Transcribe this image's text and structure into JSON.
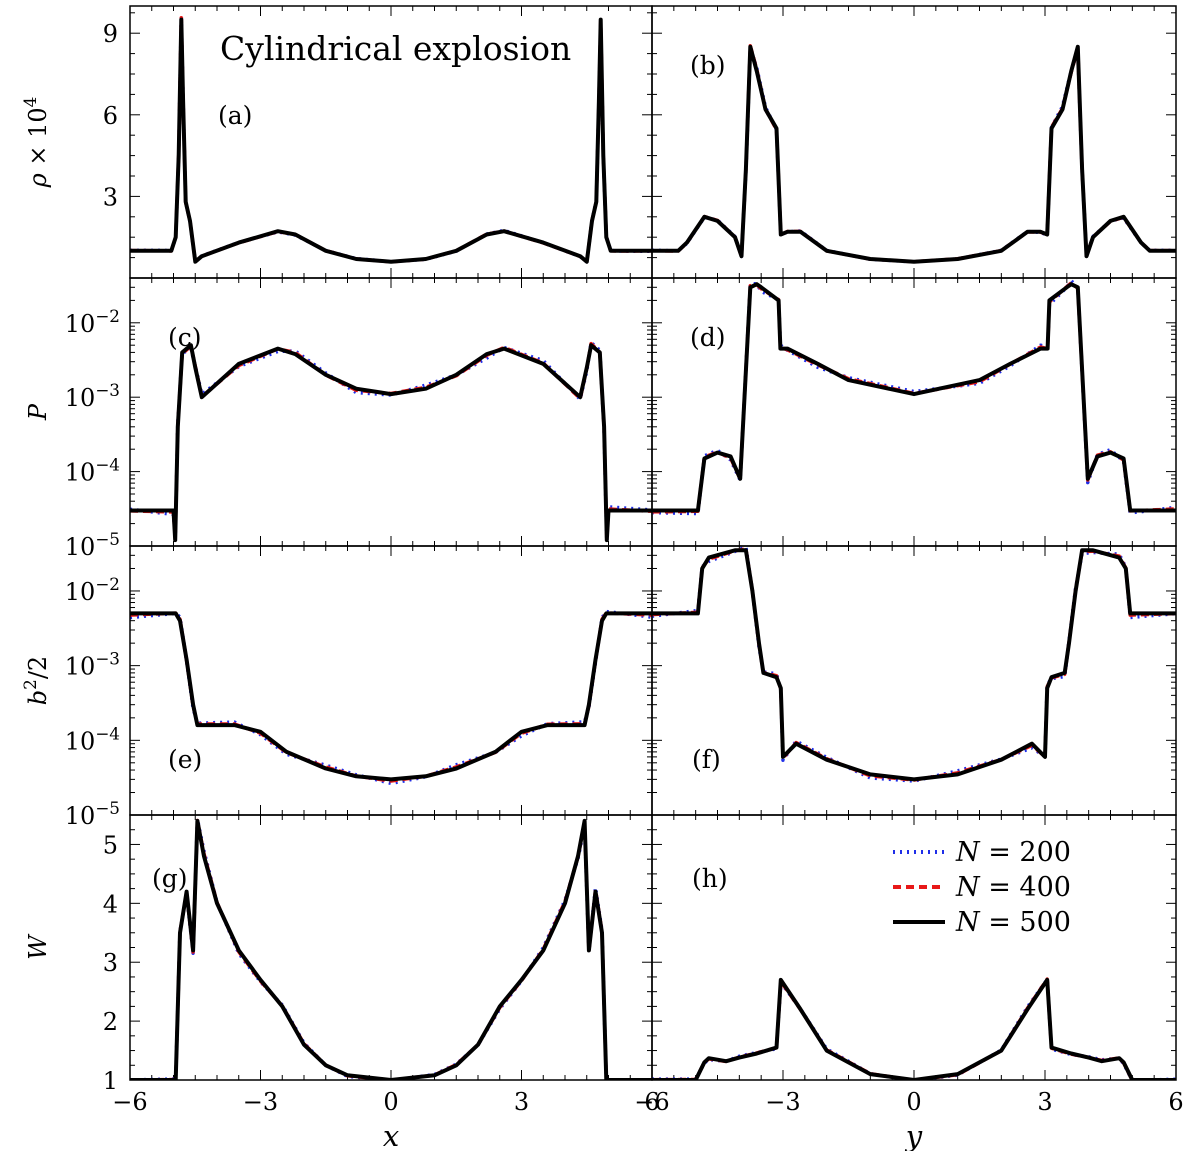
{
  "figure": {
    "title": "Cylindrical explosion",
    "xlabels": [
      "x",
      "y"
    ],
    "colors": {
      "N200": "#1f2ee8",
      "N400": "#e81818",
      "N500": "#000000",
      "axes": "#000000"
    }
  },
  "legend": {
    "placement": "upper-right of panel (h)",
    "entries": [
      {
        "label": "N = 200",
        "style": "dotted",
        "color": "#1f2ee8"
      },
      {
        "label": "N = 400",
        "style": "dashed",
        "color": "#e81818"
      },
      {
        "label": "N = 500",
        "style": "solid",
        "color": "#000000"
      }
    ]
  },
  "chart_data": [
    {
      "type": "line",
      "panel": "(a)",
      "xlabel": "",
      "ylabel": "ρ × 10⁴",
      "xlim": [
        -6,
        6
      ],
      "ylim": [
        0,
        10
      ],
      "yscale": "linear",
      "xticks": [
        -6,
        -3,
        0,
        3,
        6
      ],
      "yticks": [
        3,
        6,
        9
      ],
      "x": [
        -6,
        -5.2,
        -5.05,
        -4.95,
        -4.88,
        -4.82,
        -4.78,
        -4.72,
        -4.62,
        -4.5,
        -4.35,
        -3.5,
        -2.6,
        -2.2,
        -1.5,
        -0.8,
        0,
        0.8,
        1.5,
        2.2,
        2.6,
        3.5,
        4.35,
        4.5,
        4.62,
        4.72,
        4.78,
        4.82,
        4.88,
        4.95,
        5.05,
        5.2,
        6
      ],
      "series": [
        {
          "name": "N = 500",
          "values": [
            1.0,
            1.0,
            1.0,
            1.5,
            4.5,
            9.5,
            6.5,
            2.8,
            2.1,
            0.6,
            0.8,
            1.3,
            1.72,
            1.6,
            1.0,
            0.7,
            0.6,
            0.7,
            1.0,
            1.6,
            1.72,
            1.3,
            0.8,
            0.6,
            2.1,
            2.8,
            6.5,
            9.5,
            4.5,
            1.5,
            1.0,
            1.0,
            1.0
          ]
        }
      ]
    },
    {
      "type": "line",
      "panel": "(b)",
      "xlabel": "",
      "ylabel": "",
      "xlim": [
        -6,
        6
      ],
      "ylim": [
        0,
        10
      ],
      "yscale": "linear",
      "xticks": [
        -6,
        -3,
        0,
        3,
        6
      ],
      "yticks": [
        3,
        6,
        9
      ],
      "x": [
        -6,
        -5.4,
        -5.2,
        -4.8,
        -4.5,
        -4.1,
        -3.95,
        -3.85,
        -3.75,
        -3.6,
        -3.4,
        -3.15,
        -3.05,
        -2.9,
        -2.6,
        -2.0,
        -1.0,
        0,
        1.0,
        2.0,
        2.6,
        2.9,
        3.05,
        3.15,
        3.4,
        3.6,
        3.75,
        3.85,
        3.95,
        4.1,
        4.5,
        4.8,
        5.2,
        5.4,
        6
      ],
      "series": [
        {
          "name": "N = 500",
          "values": [
            1.0,
            1.0,
            1.3,
            2.25,
            2.1,
            1.5,
            0.8,
            4.0,
            8.5,
            7.6,
            6.2,
            5.5,
            1.6,
            1.7,
            1.7,
            1.0,
            0.7,
            0.6,
            0.7,
            1.0,
            1.7,
            1.7,
            1.6,
            5.5,
            6.2,
            7.6,
            8.5,
            4.0,
            0.8,
            1.5,
            2.1,
            2.25,
            1.3,
            1.0,
            1.0
          ]
        }
      ]
    },
    {
      "type": "line",
      "panel": "(c)",
      "xlabel": "",
      "ylabel": "P",
      "xlim": [
        -6,
        6
      ],
      "ylim": [
        1e-05,
        0.04
      ],
      "yscale": "log",
      "xticks": [
        -6,
        -3,
        0,
        3,
        6
      ],
      "ytick_labels": [
        "10⁻²",
        "10⁻³",
        "10⁻⁴",
        "10⁻⁵"
      ],
      "x": [
        -6,
        -5.0,
        -4.96,
        -4.9,
        -4.8,
        -4.6,
        -4.5,
        -4.35,
        -3.5,
        -2.6,
        -2.2,
        -1.5,
        -0.8,
        0,
        0.8,
        1.5,
        2.2,
        2.6,
        3.5,
        4.35,
        4.5,
        4.6,
        4.8,
        4.9,
        4.96,
        5.0,
        6
      ],
      "series": [
        {
          "name": "N = 500",
          "values": [
            3e-05,
            3e-05,
            1.2e-05,
            0.0004,
            0.004,
            0.005,
            0.0025,
            0.001,
            0.0028,
            0.0045,
            0.0038,
            0.002,
            0.0013,
            0.0011,
            0.0013,
            0.002,
            0.0038,
            0.0045,
            0.0028,
            0.001,
            0.0025,
            0.005,
            0.004,
            0.0004,
            1.2e-05,
            3e-05,
            3e-05
          ]
        }
      ]
    },
    {
      "type": "line",
      "panel": "(d)",
      "xlabel": "",
      "ylabel": "",
      "xlim": [
        -6,
        6
      ],
      "ylim": [
        1e-05,
        0.04
      ],
      "yscale": "log",
      "xticks": [
        -6,
        -3,
        0,
        3,
        6
      ],
      "ytick_labels": [
        "10⁻²",
        "10⁻³",
        "10⁻⁴",
        "10⁻⁵"
      ],
      "x": [
        -6,
        -4.95,
        -4.8,
        -4.5,
        -4.2,
        -3.98,
        -3.75,
        -3.6,
        -3.5,
        -3.1,
        -3.06,
        -2.9,
        -2.2,
        -1.5,
        0,
        1.5,
        2.2,
        2.9,
        3.06,
        3.1,
        3.5,
        3.6,
        3.75,
        3.98,
        4.2,
        4.5,
        4.8,
        4.95,
        6
      ],
      "series": [
        {
          "name": "N = 500",
          "values": [
            3e-05,
            3e-05,
            0.00015,
            0.00018,
            0.00016,
            8e-05,
            0.03,
            0.033,
            0.03,
            0.02,
            0.0045,
            0.0045,
            0.0028,
            0.0017,
            0.0011,
            0.0017,
            0.0028,
            0.0045,
            0.0045,
            0.02,
            0.03,
            0.033,
            0.03,
            8e-05,
            0.00016,
            0.00018,
            0.00015,
            3e-05,
            3e-05
          ]
        }
      ]
    },
    {
      "type": "line",
      "panel": "(e)",
      "xlabel": "",
      "ylabel": "b²/2",
      "xlim": [
        -6,
        6
      ],
      "ylim": [
        1e-05,
        0.04
      ],
      "yscale": "log",
      "xticks": [
        -6,
        -3,
        0,
        3,
        6
      ],
      "ytick_labels": [
        "10⁻²",
        "10⁻³",
        "10⁻⁴",
        "10⁻⁵"
      ],
      "x": [
        -6,
        -4.95,
        -4.85,
        -4.7,
        -4.55,
        -4.45,
        -3.6,
        -3.0,
        -2.4,
        -1.5,
        -0.8,
        0,
        0.8,
        1.5,
        2.4,
        3.0,
        3.6,
        4.45,
        4.55,
        4.7,
        4.85,
        4.95,
        6
      ],
      "series": [
        {
          "name": "N = 500",
          "values": [
            0.005,
            0.005,
            0.004,
            0.0012,
            0.0003,
            0.00016,
            0.00016,
            0.00013,
            7e-05,
            4.2e-05,
            3.3e-05,
            3e-05,
            3.3e-05,
            4.2e-05,
            7e-05,
            0.00013,
            0.00016,
            0.00016,
            0.0003,
            0.0012,
            0.004,
            0.005,
            0.005
          ]
        }
      ]
    },
    {
      "type": "line",
      "panel": "(f)",
      "xlabel": "",
      "ylabel": "",
      "xlim": [
        -6,
        6
      ],
      "ylim": [
        1e-05,
        0.04
      ],
      "yscale": "log",
      "xticks": [
        -6,
        -3,
        0,
        3,
        6
      ],
      "ytick_labels": [
        "10⁻²",
        "10⁻³",
        "10⁻⁴",
        "10⁻⁵"
      ],
      "x": [
        -6,
        -4.95,
        -4.85,
        -4.7,
        -4.1,
        -3.85,
        -3.7,
        -3.55,
        -3.45,
        -3.15,
        -3.05,
        -3.0,
        -2.7,
        -2.0,
        -1.0,
        0,
        1.0,
        2.0,
        2.7,
        3.0,
        3.05,
        3.15,
        3.45,
        3.55,
        3.7,
        3.85,
        4.1,
        4.7,
        4.85,
        4.95,
        6
      ],
      "series": [
        {
          "name": "N = 500",
          "values": [
            0.005,
            0.005,
            0.02,
            0.028,
            0.035,
            0.035,
            0.01,
            0.002,
            0.0008,
            0.0007,
            0.0005,
            6e-05,
            9e-05,
            5.5e-05,
            3.5e-05,
            3e-05,
            3.5e-05,
            5.5e-05,
            9e-05,
            6e-05,
            0.0005,
            0.0007,
            0.0008,
            0.002,
            0.01,
            0.035,
            0.035,
            0.028,
            0.02,
            0.005,
            0.005
          ]
        }
      ]
    },
    {
      "type": "line",
      "panel": "(g)",
      "xlabel": "x",
      "ylabel": "W",
      "xlim": [
        -6,
        6
      ],
      "ylim": [
        1,
        5.5
      ],
      "yscale": "linear",
      "xticks": [
        -6,
        -3,
        0,
        3,
        6
      ],
      "yticks": [
        1,
        2,
        3,
        4,
        5
      ],
      "x": [
        -6,
        -4.95,
        -4.85,
        -4.7,
        -4.55,
        -4.45,
        -4.3,
        -4.0,
        -3.5,
        -3.0,
        -2.5,
        -2.0,
        -1.5,
        -1.0,
        0,
        1.0,
        1.5,
        2.0,
        2.5,
        3.0,
        3.5,
        4.0,
        4.3,
        4.45,
        4.55,
        4.7,
        4.85,
        4.95,
        6
      ],
      "series": [
        {
          "name": "N = 500",
          "values": [
            1.0,
            1.0,
            3.5,
            4.2,
            3.2,
            5.4,
            4.8,
            4.0,
            3.2,
            2.7,
            2.25,
            1.6,
            1.25,
            1.08,
            1.0,
            1.08,
            1.25,
            1.6,
            2.25,
            2.7,
            3.2,
            4.0,
            4.8,
            5.4,
            3.2,
            4.2,
            3.5,
            1.0,
            1.0
          ]
        }
      ]
    },
    {
      "type": "line",
      "panel": "(h)",
      "xlabel": "y",
      "ylabel": "",
      "xlim": [
        -6,
        6
      ],
      "ylim": [
        1,
        5.5
      ],
      "yscale": "linear",
      "xticks": [
        -6,
        -3,
        0,
        3,
        6
      ],
      "yticks": [
        1,
        2,
        3,
        4,
        5
      ],
      "x": [
        -6,
        -5.0,
        -4.8,
        -4.7,
        -4.3,
        -4.0,
        -3.6,
        -3.15,
        -3.05,
        -2.6,
        -2.0,
        -1.0,
        0,
        1.0,
        2.0,
        2.6,
        3.05,
        3.15,
        3.6,
        4.0,
        4.3,
        4.7,
        4.8,
        5.0,
        6
      ],
      "series": [
        {
          "name": "N = 500",
          "values": [
            1.0,
            1.0,
            1.3,
            1.37,
            1.32,
            1.38,
            1.45,
            1.55,
            2.7,
            2.2,
            1.5,
            1.1,
            1.0,
            1.1,
            1.5,
            2.2,
            2.7,
            1.55,
            1.45,
            1.38,
            1.32,
            1.37,
            1.3,
            1.0,
            1.0
          ]
        }
      ]
    }
  ]
}
